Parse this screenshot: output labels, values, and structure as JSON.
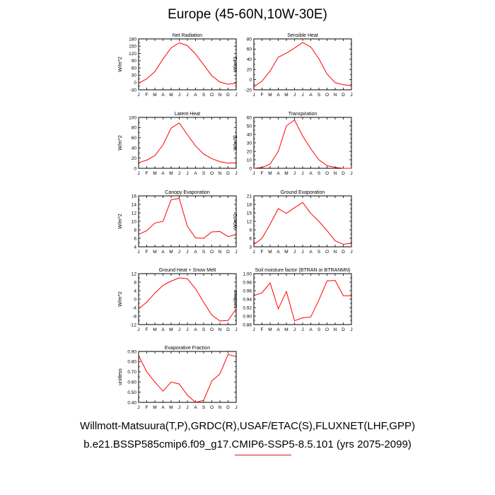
{
  "title": "Europe (45-60N,10W-30E)",
  "footer": {
    "line1": "Willmott-Matsuura(T,P),GRDC(R),USAF/ETAC(S),FLUXNET(LHF,GPP)",
    "line2": "b.e21.BSSP585cmip6.f09_g17.CMIP6-SSP5-8.5.101 (yrs 2075-2099)"
  },
  "colors": {
    "line": "#ff0000",
    "axis": "#000000"
  },
  "chart_data": [
    {
      "type": "line",
      "title": "Net Radiation",
      "ylabel": "W/m^2",
      "categories": [
        "J",
        "F",
        "M",
        "A",
        "M",
        "J",
        "J",
        "A",
        "S",
        "O",
        "N",
        "D",
        "J"
      ],
      "ylim": [
        -30,
        180
      ],
      "yticks": [
        -30,
        -15,
        0,
        15,
        30,
        45,
        60,
        75,
        90,
        105,
        120,
        135,
        150,
        165,
        180
      ],
      "ytick_labels": [
        "-30",
        "",
        "0",
        "",
        "30",
        "",
        "60",
        "",
        "90",
        "",
        "120",
        "",
        "150",
        "",
        "180"
      ],
      "values": [
        -3,
        15,
        45,
        97,
        143,
        164,
        152,
        118,
        73,
        28,
        2,
        -7,
        -3
      ]
    },
    {
      "type": "line",
      "title": "Sensible Heat",
      "ylabel": "W/m^2",
      "categories": [
        "J",
        "F",
        "M",
        "A",
        "M",
        "J",
        "J",
        "A",
        "S",
        "O",
        "N",
        "D",
        "J"
      ],
      "ylim": [
        -20,
        80
      ],
      "yticks": [
        -20,
        -10,
        0,
        10,
        20,
        30,
        40,
        50,
        60,
        70,
        80
      ],
      "ytick_labels": [
        "-20",
        "",
        "0",
        "",
        "20",
        "",
        "40",
        "",
        "60",
        "",
        "80"
      ],
      "values": [
        -14,
        -3,
        17,
        44,
        52,
        62,
        73,
        64,
        41,
        11,
        -6,
        -10,
        -12
      ]
    },
    {
      "type": "line",
      "title": "Latent Heat",
      "ylabel": "W/m^2",
      "categories": [
        "J",
        "F",
        "M",
        "A",
        "M",
        "J",
        "J",
        "A",
        "S",
        "O",
        "N",
        "D",
        "J"
      ],
      "ylim": [
        0,
        100
      ],
      "yticks": [
        0,
        10,
        20,
        30,
        40,
        50,
        60,
        70,
        80,
        90,
        100
      ],
      "ytick_labels": [
        "0",
        "",
        "20",
        "",
        "40",
        "",
        "60",
        "",
        "80",
        "",
        "100"
      ],
      "values": [
        11,
        16,
        25,
        46,
        79,
        89,
        66,
        44,
        28,
        19,
        13,
        10,
        11
      ]
    },
    {
      "type": "line",
      "title": "Transpiration",
      "ylabel": "W/m^2",
      "categories": [
        "J",
        "F",
        "M",
        "A",
        "M",
        "J",
        "J",
        "A",
        "S",
        "O",
        "N",
        "D",
        "J"
      ],
      "ylim": [
        0,
        60
      ],
      "yticks": [
        0,
        5,
        10,
        15,
        20,
        25,
        30,
        35,
        40,
        45,
        50,
        55,
        60
      ],
      "ytick_labels": [
        "0",
        "",
        "10",
        "",
        "20",
        "",
        "30",
        "",
        "40",
        "",
        "50",
        "",
        "60"
      ],
      "values": [
        0,
        1,
        5,
        20,
        50,
        57,
        38,
        23,
        10,
        3,
        1,
        0,
        0
      ]
    },
    {
      "type": "line",
      "title": "Canopy Evaporation",
      "ylabel": "W/m^2",
      "categories": [
        "J",
        "F",
        "M",
        "A",
        "M",
        "J",
        "J",
        "A",
        "S",
        "O",
        "N",
        "D",
        "J"
      ],
      "ylim": [
        4,
        16
      ],
      "yticks": [
        4,
        5,
        6,
        7,
        8,
        9,
        10,
        11,
        12,
        13,
        14,
        15,
        16
      ],
      "ytick_labels": [
        "4",
        "",
        "6",
        "",
        "8",
        "",
        "10",
        "",
        "12",
        "",
        "14",
        "",
        "16"
      ],
      "values": [
        6.9,
        7.8,
        9.6,
        10.0,
        15.1,
        15.4,
        8.8,
        6.1,
        6.0,
        7.5,
        7.6,
        6.4,
        6.9
      ]
    },
    {
      "type": "line",
      "title": "Ground Evaporation",
      "ylabel": "W/m^2",
      "categories": [
        "J",
        "F",
        "M",
        "A",
        "M",
        "J",
        "J",
        "A",
        "S",
        "O",
        "N",
        "D",
        "J"
      ],
      "ylim": [
        3,
        21
      ],
      "yticks": [
        3,
        4.5,
        6,
        7.5,
        9,
        10.5,
        12,
        13.5,
        15,
        16.5,
        18,
        19.5,
        21
      ],
      "ytick_labels": [
        "3",
        "",
        "6",
        "",
        "9",
        "",
        "12",
        "",
        "15",
        "",
        "18",
        "",
        "21"
      ],
      "values": [
        3.8,
        6.0,
        11.0,
        16.5,
        14.8,
        16.8,
        18.7,
        14.8,
        12.0,
        8.7,
        5.1,
        3.9,
        4.2
      ]
    },
    {
      "type": "line",
      "title": "Ground Heat + Snow Melt",
      "ylabel": "W/m^2",
      "categories": [
        "J",
        "F",
        "M",
        "A",
        "M",
        "J",
        "J",
        "A",
        "S",
        "O",
        "N",
        "D",
        "J"
      ],
      "ylim": [
        -12,
        12
      ],
      "yticks": [
        -12,
        -10,
        -8,
        -6,
        -4,
        -2,
        0,
        2,
        4,
        6,
        8,
        10,
        12
      ],
      "ytick_labels": [
        "-12",
        "",
        "-8",
        "",
        "-4",
        "",
        "0",
        "",
        "4",
        "",
        "8",
        "",
        "12"
      ],
      "values": [
        -4.5,
        -1.5,
        2.8,
        6.5,
        8.5,
        10.0,
        9.6,
        4.9,
        -1.5,
        -7.5,
        -10.3,
        -10.1,
        -4.5
      ]
    },
    {
      "type": "line",
      "title": "Soil moisture factor (BTRAN or BTRANMN)",
      "ylabel": "unitless",
      "categories": [
        "J",
        "F",
        "M",
        "A",
        "M",
        "J",
        "J",
        "A",
        "S",
        "O",
        "N",
        "D",
        "J"
      ],
      "ylim": [
        0.88,
        1.0
      ],
      "yticks": [
        0.88,
        0.89,
        0.9,
        0.91,
        0.92,
        0.93,
        0.94,
        0.95,
        0.96,
        0.97,
        0.98,
        0.99,
        1.0
      ],
      "ytick_labels": [
        "0.88",
        "",
        "0.90",
        "",
        "0.92",
        "",
        "0.94",
        "",
        "0.96",
        "",
        "0.98",
        "",
        "1.00"
      ],
      "values": [
        0.948,
        0.955,
        0.978,
        0.917,
        0.958,
        0.889,
        0.896,
        0.898,
        0.938,
        0.983,
        0.984,
        0.948,
        0.948
      ]
    },
    {
      "type": "line",
      "title": "Evaporative Fraction",
      "ylabel": "unitless",
      "categories": [
        "J",
        "F",
        "M",
        "A",
        "M",
        "J",
        "J",
        "A",
        "S",
        "O",
        "N",
        "D",
        "J"
      ],
      "ylim": [
        0.4,
        0.9
      ],
      "yticks": [
        0.4,
        0.45,
        0.5,
        0.55,
        0.6,
        0.65,
        0.7,
        0.75,
        0.8,
        0.85,
        0.9
      ],
      "ytick_labels": [
        "0.40",
        "",
        "0.50",
        "",
        "0.60",
        "",
        "0.70",
        "",
        "0.80",
        "",
        "0.90"
      ],
      "values": [
        0.86,
        0.7,
        0.6,
        0.51,
        0.6,
        0.58,
        0.47,
        0.4,
        0.42,
        0.61,
        0.68,
        0.87,
        0.85
      ]
    }
  ]
}
